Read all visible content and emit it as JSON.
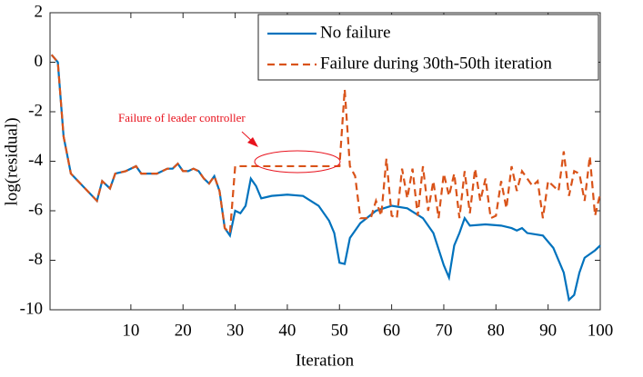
{
  "chart_data": {
    "type": "line",
    "xlabel": "Iteration",
    "ylabel": "log(residual)",
    "xlim": [
      -5.5,
      100
    ],
    "ylim": [
      -10,
      2
    ],
    "xticks": [
      10,
      20,
      30,
      40,
      50,
      60,
      70,
      80,
      90,
      100
    ],
    "yticks": [
      -10,
      -8,
      -6,
      -4,
      -2,
      0,
      2
    ],
    "legend": "upper right",
    "annotation": "Failure of leader controller",
    "series": [
      {
        "name": "No failure",
        "color": "#0072bd",
        "style": "solid",
        "x": [
          -5.2,
          -4,
          -2.9,
          -1.5,
          3.5,
          4.5,
          6,
          7,
          9,
          11,
          12,
          14,
          15,
          17,
          18,
          19,
          20,
          21,
          22,
          23,
          24,
          25,
          26,
          27,
          28,
          29,
          30,
          31,
          32,
          33,
          34,
          35,
          37,
          40,
          43,
          46,
          48,
          49,
          50,
          51,
          52,
          54,
          57,
          60,
          63,
          66,
          68,
          70,
          71,
          72,
          73,
          74,
          75,
          78,
          81,
          83,
          84,
          85,
          86,
          89,
          91,
          93,
          94,
          95,
          96,
          97,
          99,
          100
        ],
        "values": [
          0.3,
          0,
          -3,
          -4.5,
          -5.6,
          -4.8,
          -5.1,
          -4.5,
          -4.4,
          -4.2,
          -4.5,
          -4.5,
          -4.5,
          -4.3,
          -4.3,
          -4.1,
          -4.4,
          -4.4,
          -4.3,
          -4.4,
          -4.7,
          -4.9,
          -4.6,
          -5.2,
          -6.7,
          -7.0,
          -6.0,
          -6.1,
          -5.8,
          -4.7,
          -5.0,
          -5.5,
          -5.4,
          -5.35,
          -5.4,
          -5.8,
          -6.4,
          -6.9,
          -8.1,
          -8.15,
          -7.1,
          -6.5,
          -6.0,
          -5.8,
          -5.9,
          -6.3,
          -6.9,
          -8.2,
          -8.7,
          -7.4,
          -6.9,
          -6.3,
          -6.6,
          -6.55,
          -6.6,
          -6.7,
          -6.8,
          -6.7,
          -6.9,
          -7.0,
          -7.5,
          -8.5,
          -9.6,
          -9.4,
          -8.5,
          -7.9,
          -7.6,
          -7.4
        ]
      },
      {
        "name": "Failure during 30th-50th iteration",
        "color": "#d95319",
        "style": "dashed",
        "x": [
          -5.2,
          -4,
          -2.9,
          -1.5,
          3.5,
          4.5,
          6,
          7,
          9,
          11,
          12,
          14,
          15,
          17,
          18,
          19,
          20,
          21,
          22,
          23,
          24,
          25,
          26,
          27,
          28,
          29,
          30,
          50,
          51,
          52,
          53,
          54,
          56,
          57,
          58,
          59,
          60,
          61,
          62,
          63,
          64,
          65,
          66,
          67,
          68,
          69,
          70,
          71,
          72,
          73,
          74,
          75,
          76,
          77,
          78,
          79,
          80,
          81,
          82,
          83,
          84,
          85,
          86,
          87,
          88,
          89,
          90,
          91,
          92,
          93,
          94,
          95,
          96,
          97,
          98,
          99,
          100
        ],
        "values": [
          0.3,
          0,
          -3,
          -4.5,
          -5.6,
          -4.8,
          -5.1,
          -4.5,
          -4.4,
          -4.2,
          -4.5,
          -4.5,
          -4.5,
          -4.3,
          -4.3,
          -4.1,
          -4.4,
          -4.4,
          -4.3,
          -4.4,
          -4.7,
          -4.9,
          -4.6,
          -5.2,
          -6.7,
          -6.9,
          -4.2,
          -4.2,
          -1.1,
          -4.2,
          -4.6,
          -6.3,
          -6.3,
          -5.6,
          -6.2,
          -3.9,
          -6.2,
          -6.3,
          -4.3,
          -5.5,
          -4.3,
          -6.2,
          -4.2,
          -6.0,
          -4.8,
          -6.3,
          -4.5,
          -5.4,
          -4.5,
          -6.3,
          -4.4,
          -6.1,
          -4.3,
          -5.6,
          -4.7,
          -6.3,
          -6.2,
          -4.8,
          -5.9,
          -4.2,
          -5.2,
          -4.4,
          -4.7,
          -5.0,
          -4.8,
          -6.3,
          -4.8,
          -5.0,
          -5.2,
          -3.6,
          -5.4,
          -4.4,
          -4.5,
          -5.6,
          -3.8,
          -6.2,
          -5.3
        ]
      }
    ]
  }
}
